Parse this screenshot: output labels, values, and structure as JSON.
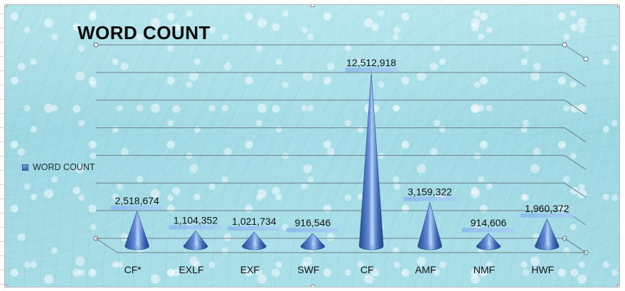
{
  "chart_data": {
    "type": "bar",
    "style": "3d-cone",
    "title": "WORD COUNT",
    "legend": {
      "label": "WORD COUNT",
      "position": "left"
    },
    "categories": [
      "CF*",
      "EXLF",
      "EXF",
      "SWF",
      "CF",
      "AMF",
      "NMF",
      "HWF"
    ],
    "values": [
      2518674,
      1104352,
      1021734,
      916546,
      12512918,
      3159322,
      914606,
      1960372
    ],
    "data_labels": [
      "2,518,674",
      "1,104,352",
      "1,021,734",
      "916,546",
      "12,512,918",
      "3,159,322",
      "914,606",
      "1,960,372"
    ],
    "ylim": [
      0,
      14000000
    ],
    "gridlines": true,
    "xlabel": "",
    "ylabel": ""
  },
  "colors": {
    "cone_dark": "#2e5ca8",
    "cone_light": "#8ab0ea",
    "label_band": "#8bb8ec",
    "gridline": "#6f7f88"
  }
}
